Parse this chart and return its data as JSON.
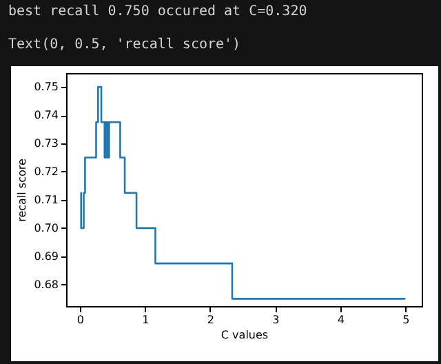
{
  "chart_data": {
    "type": "step",
    "annotations": [
      "best recall 0.750 occured at C=0.320",
      "Text(0, 0.5, 'recall score')"
    ],
    "xlabel": "C values",
    "ylabel": "recall score",
    "x": [
      0.01,
      0.02,
      0.06,
      0.08,
      0.25,
      0.28,
      0.33,
      0.38,
      0.39,
      0.41,
      0.42,
      0.44,
      0.45,
      0.62,
      0.69,
      0.87,
      1.16,
      2.34,
      5
    ],
    "values": [
      0.7125,
      0.7,
      0.7125,
      0.725,
      0.7375,
      0.75,
      0.7375,
      0.725,
      0.7375,
      0.725,
      0.7375,
      0.725,
      0.7375,
      0.725,
      0.7125,
      0.7,
      0.6875,
      0.675,
      0.675
    ],
    "color": "#1f77b4",
    "xlim": [
      -0.21,
      5.25
    ],
    "ylim": [
      0.6724,
      0.7549
    ],
    "xticks": [
      0,
      1,
      2,
      3,
      4,
      5
    ],
    "yticks": [
      0.68,
      0.69,
      {
        "value": 0.7,
        "label": "0.70"
      },
      0.71,
      0.72,
      0.73,
      0.74,
      0.75
    ]
  }
}
